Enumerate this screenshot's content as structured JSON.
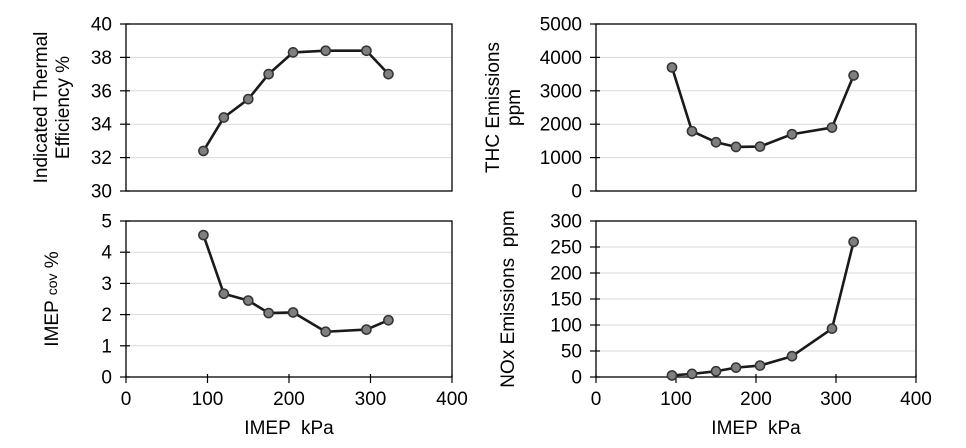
{
  "styles": {
    "background": "#ffffff",
    "line_color": "#1a1a1a",
    "marker_fill": "#7f7f7f",
    "marker_stroke": "#333333",
    "grid_color": "#d9d9d9",
    "axis_color": "#000000",
    "text_color": "#000000"
  },
  "chart_data": [
    {
      "id": "indicated-thermal-efficiency",
      "type": "line",
      "title": "",
      "ylabel_lines": [
        [
          {
            "text": "Indicated Thermal"
          }
        ],
        [
          {
            "text": "Efficiency %"
          }
        ]
      ],
      "xlabel": "",
      "x": [
        95,
        120,
        150,
        175,
        205,
        245,
        295,
        322
      ],
      "values": [
        32.4,
        34.4,
        35.5,
        37.0,
        38.3,
        38.4,
        38.4,
        37.0
      ],
      "xlim": [
        0,
        400
      ],
      "ylim": [
        30,
        40
      ],
      "xticks": [
        0,
        100,
        200,
        300,
        400
      ],
      "yticks": [
        30,
        32,
        34,
        36,
        38,
        40
      ],
      "show_x_tick_labels": false,
      "grid": "horizontal",
      "legend": "none"
    },
    {
      "id": "thc-emissions",
      "type": "line",
      "title": "",
      "ylabel_lines": [
        [
          {
            "text": "THC Emissions"
          }
        ],
        [
          {
            "text": "ppm"
          }
        ]
      ],
      "xlabel": "",
      "x": [
        95,
        120,
        150,
        175,
        205,
        245,
        295,
        322
      ],
      "values": [
        3700,
        1790,
        1460,
        1320,
        1330,
        1700,
        1900,
        3460
      ],
      "xlim": [
        0,
        400
      ],
      "ylim": [
        0,
        5000
      ],
      "xticks": [
        0,
        100,
        200,
        300,
        400
      ],
      "yticks": [
        0,
        1000,
        2000,
        3000,
        4000,
        5000
      ],
      "show_x_tick_labels": false,
      "grid": "horizontal",
      "legend": "none"
    },
    {
      "id": "imep-cov",
      "type": "line",
      "title": "",
      "ylabel_lines": [
        [
          {
            "text": "IMEP "
          },
          {
            "text": "cov",
            "small": true
          },
          {
            "text": " %"
          }
        ]
      ],
      "xlabel": "IMEP  kPa",
      "x": [
        95,
        120,
        150,
        175,
        205,
        245,
        295,
        322
      ],
      "values": [
        4.55,
        2.67,
        2.45,
        2.05,
        2.07,
        1.45,
        1.52,
        1.82
      ],
      "xlim": [
        0,
        400
      ],
      "ylim": [
        0,
        5
      ],
      "xticks": [
        0,
        100,
        200,
        300,
        400
      ],
      "yticks": [
        0,
        1,
        2,
        3,
        4,
        5
      ],
      "show_x_tick_labels": true,
      "grid": "horizontal",
      "legend": "none"
    },
    {
      "id": "nox-emissions",
      "type": "line",
      "title": "",
      "ylabel_lines": [
        [
          {
            "text": "NOx Emissions  ppm"
          }
        ]
      ],
      "xlabel": "IMEP  kPa",
      "x": [
        95,
        120,
        150,
        175,
        205,
        245,
        295,
        322
      ],
      "values": [
        3,
        6,
        11,
        18,
        22,
        40,
        93,
        260
      ],
      "xlim": [
        0,
        400
      ],
      "ylim": [
        0,
        300
      ],
      "xticks": [
        0,
        100,
        200,
        300,
        400
      ],
      "yticks": [
        0,
        50,
        100,
        150,
        200,
        250,
        300
      ],
      "show_x_tick_labels": true,
      "grid": "horizontal",
      "legend": "none"
    }
  ]
}
